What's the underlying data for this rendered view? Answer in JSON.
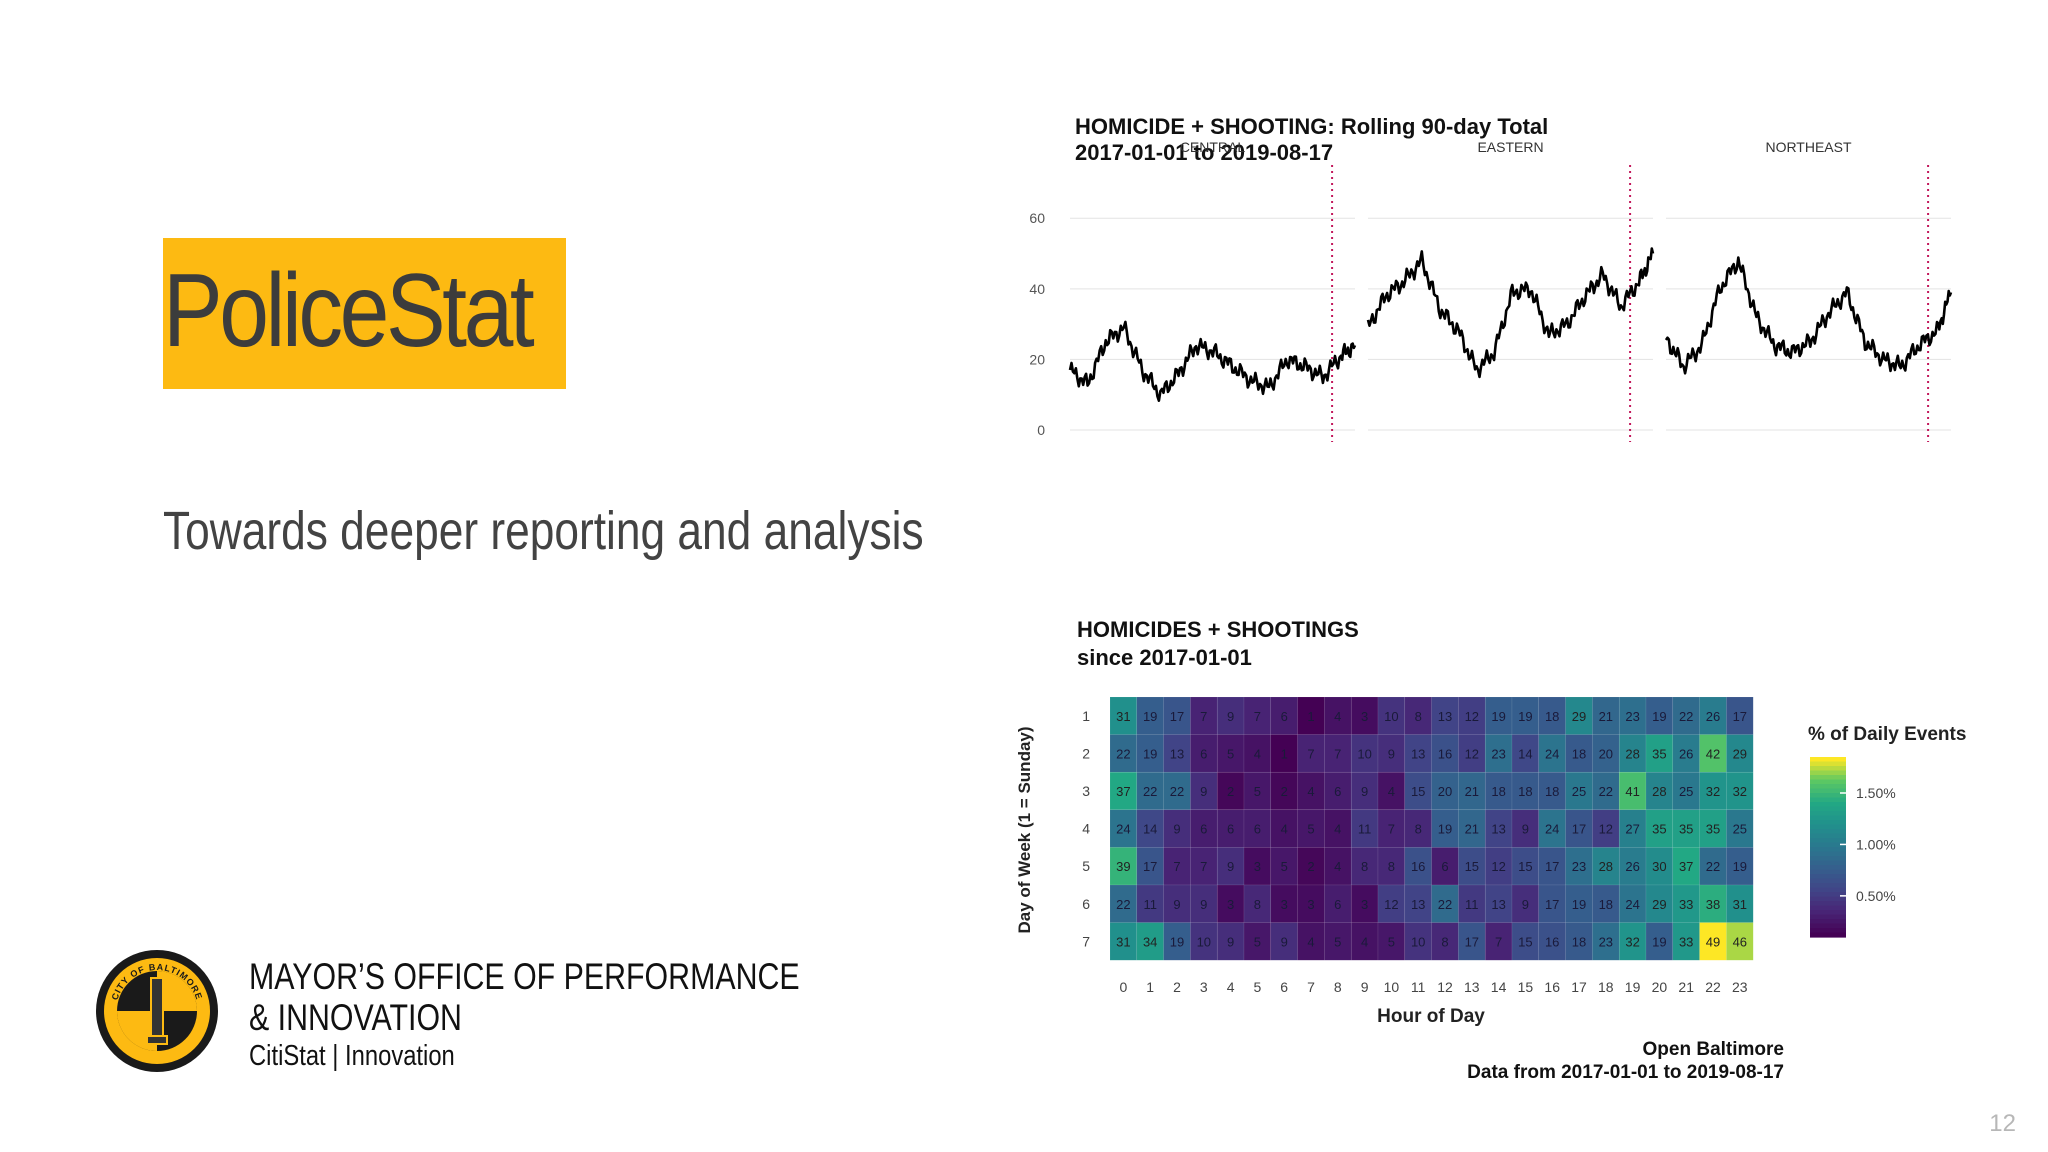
{
  "slide": {
    "title": "PoliceStat",
    "subtitle": "Towards deeper reporting and analysis",
    "org_line1": "MAYOR’S OFFICE OF PERFORMANCE",
    "org_line2": "& INNOVATION",
    "org_line3": "CitiStat  |  Innovation",
    "logo_text": "CITY OF BALTIMORE",
    "page_number": "12"
  },
  "colors": {
    "accent": "#fdba12",
    "line": "#000000",
    "event_marker": "#c2185b"
  },
  "chart_data": [
    {
      "type": "line",
      "title": "HOMICIDE + SHOOTING: Rolling 90-day Total",
      "subtitle": "2017-01-01 to 2019-08-17",
      "xlabel": "",
      "ylabel": "",
      "x_range": [
        "2017-01-01",
        "2019-08-17"
      ],
      "ylim": [
        0,
        68
      ],
      "yticks": [
        0,
        20,
        40,
        60
      ],
      "grid": true,
      "legend": "none",
      "x": [
        "2017-01-01",
        "2017-03-01",
        "2017-05-01",
        "2017-07-01",
        "2017-09-01",
        "2017-11-01",
        "2018-01-01",
        "2018-03-01",
        "2018-05-01",
        "2018-07-01",
        "2018-09-01",
        "2018-11-01",
        "2019-01-01",
        "2019-03-01",
        "2019-05-01",
        "2019-07-01",
        "2019-08-17"
      ],
      "vline_x": "2019-06-01",
      "series": [
        {
          "name": "CENTRAL",
          "values": [
            17,
            13,
            25,
            29,
            17,
            10,
            16,
            24,
            22,
            18,
            14,
            12,
            20,
            18,
            15,
            21,
            24
          ]
        },
        {
          "name": "EASTERN",
          "values": [
            29,
            38,
            42,
            48,
            34,
            28,
            17,
            22,
            39,
            40,
            27,
            30,
            38,
            44,
            35,
            42,
            50
          ]
        },
        {
          "name": "NORTHEAST",
          "values": [
            26,
            18,
            24,
            40,
            48,
            32,
            24,
            22,
            25,
            33,
            39,
            25,
            20,
            18,
            24,
            28,
            39
          ]
        }
      ]
    },
    {
      "type": "heatmap",
      "title": "HOMICIDES + SHOOTINGS",
      "subtitle": "since 2017-01-01",
      "xlabel": "Hour of Day",
      "ylabel": "Day of Week (1 = Sunday)",
      "x": [
        "0",
        "1",
        "2",
        "3",
        "4",
        "5",
        "6",
        "7",
        "8",
        "9",
        "10",
        "11",
        "12",
        "13",
        "14",
        "15",
        "16",
        "17",
        "18",
        "19",
        "20",
        "21",
        "22",
        "23"
      ],
      "y": [
        "1",
        "2",
        "3",
        "4",
        "5",
        "6",
        "7"
      ],
      "values": [
        [
          31,
          19,
          17,
          7,
          9,
          7,
          6,
          1,
          4,
          3,
          10,
          8,
          13,
          12,
          19,
          19,
          18,
          29,
          21,
          23,
          19,
          22,
          26,
          17
        ],
        [
          22,
          19,
          13,
          6,
          5,
          4,
          1,
          7,
          7,
          10,
          9,
          13,
          16,
          12,
          23,
          14,
          24,
          18,
          20,
          28,
          35,
          26,
          42,
          29
        ],
        [
          37,
          22,
          22,
          9,
          2,
          5,
          2,
          4,
          6,
          9,
          4,
          15,
          20,
          21,
          18,
          18,
          18,
          25,
          22,
          41,
          28,
          25,
          32,
          32
        ],
        [
          24,
          14,
          9,
          6,
          6,
          6,
          4,
          5,
          4,
          11,
          7,
          8,
          19,
          21,
          13,
          9,
          24,
          17,
          12,
          27,
          35,
          35,
          35,
          25
        ],
        [
          39,
          17,
          7,
          7,
          9,
          3,
          5,
          2,
          4,
          8,
          8,
          16,
          6,
          15,
          12,
          15,
          17,
          23,
          28,
          26,
          30,
          37,
          22,
          19
        ],
        [
          22,
          11,
          9,
          9,
          3,
          8,
          3,
          3,
          6,
          3,
          12,
          13,
          22,
          11,
          13,
          9,
          17,
          19,
          18,
          24,
          29,
          33,
          38,
          31
        ],
        [
          31,
          34,
          19,
          10,
          9,
          5,
          9,
          4,
          5,
          4,
          5,
          10,
          8,
          17,
          7,
          15,
          16,
          18,
          23,
          32,
          19,
          33,
          49,
          46
        ]
      ],
      "legend_title": "% of Daily Events",
      "legend_ticks": [
        "1.50%",
        "1.00%",
        "0.50%"
      ],
      "legend_tick_values": [
        1.5,
        1.0,
        0.5
      ],
      "legend_range": [
        0.1,
        1.85
      ],
      "colorscale": "viridis",
      "caption_line1": "Open Baltimore",
      "caption_line2": "Data from 2017-01-01 to 2019-08-17"
    }
  ]
}
